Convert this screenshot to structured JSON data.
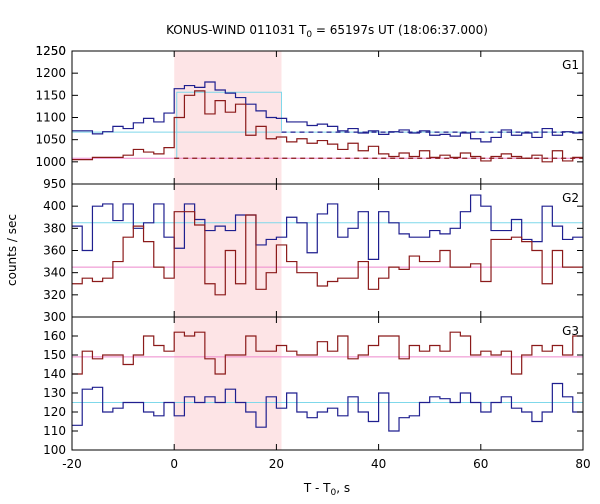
{
  "chart_data": {
    "type": "line",
    "title_main": "KONUS-WIND 011031 T",
    "title_sub": "0",
    "title_rest": " = 65197s UT (18:06:37.000)",
    "xlabel_main": "T - T",
    "xlabel_sub": "0",
    "xlabel_rest": ", s",
    "ylabel": "counts / sec",
    "xlim": [
      -20,
      80
    ],
    "x_ticks": [
      "-20",
      "0",
      "20",
      "40",
      "60",
      "80"
    ],
    "x_tick_values": [
      -20,
      0,
      20,
      40,
      60,
      80
    ],
    "shaded_interval": [
      0,
      21
    ],
    "shade_color": "#fde4e6",
    "bin_edges": [
      -20,
      -18,
      -16,
      -14,
      -12,
      -10,
      -8,
      -6,
      -4,
      -2,
      0,
      2,
      4,
      6,
      8,
      10,
      12,
      14,
      16,
      18,
      20,
      22,
      24,
      26,
      28,
      30,
      32,
      34,
      36,
      38,
      40,
      42,
      44,
      46,
      48,
      50,
      52,
      54,
      56,
      58,
      60,
      62,
      64,
      66,
      68,
      70,
      72,
      74,
      76,
      78,
      80
    ],
    "panels": [
      {
        "name": "G1",
        "ylim": [
          950,
          1250
        ],
        "y_ticks": [
          "950",
          "1000",
          "1050",
          "1100",
          "1150",
          "1200",
          "1250"
        ],
        "y_tick_values": [
          950,
          1000,
          1050,
          1100,
          1150,
          1200,
          1250
        ],
        "series": [
          {
            "color": "#1f1f8f",
            "values": [
              1070,
              1070,
              1063,
              1068,
              1080,
              1075,
              1088,
              1098,
              1090,
              1110,
              1165,
              1172,
              1168,
              1180,
              1162,
              1155,
              1145,
              1130,
              1115,
              1100,
              1098,
              1090,
              1090,
              1082,
              1085,
              1080,
              1070,
              1075,
              1065,
              1070,
              1062,
              1068,
              1072,
              1065,
              1070,
              1060,
              1062,
              1058,
              1065,
              1052,
              1045,
              1055,
              1072,
              1060,
              1065,
              1055,
              1075,
              1060,
              1068,
              1065
            ]
          },
          {
            "color": "#8b1a1a",
            "values": [
              1005,
              1005,
              1010,
              1010,
              1010,
              1015,
              1028,
              1022,
              1018,
              1032,
              1100,
              1150,
              1160,
              1108,
              1138,
              1112,
              1130,
              1060,
              1080,
              1052,
              1056,
              1045,
              1052,
              1042,
              1048,
              1040,
              1028,
              1042,
              1025,
              1035,
              1018,
              1012,
              1020,
              1012,
              1025,
              1010,
              1015,
              1010,
              1020,
              1012,
              1002,
              1012,
              1018,
              1012,
              1008,
              1015,
              1000,
              1025,
              1002,
              1010
            ]
          }
        ],
        "backgrounds": [
          {
            "color": "#7fd8ea",
            "value": 1067
          },
          {
            "color": "#ee88cc",
            "value": 1008
          }
        ],
        "dashed_levels": [
          {
            "color": "#1f1f8f",
            "value": 1067,
            "from": 21,
            "to": 80
          },
          {
            "color": "#8b1a1a",
            "value": 1008,
            "from": 0,
            "to": 80
          }
        ],
        "fit_box": {
          "color": "#7fd8ea",
          "value": 1157,
          "from": 0.5,
          "to": 21
        }
      },
      {
        "name": "G2",
        "ylim": [
          300,
          420
        ],
        "y_ticks": [
          "300",
          "320",
          "340",
          "360",
          "380",
          "400"
        ],
        "y_tick_values": [
          300,
          320,
          340,
          360,
          380,
          400
        ],
        "series": [
          {
            "color": "#1f1f8f",
            "values": [
              382,
              360,
              400,
              402,
              387,
              402,
              380,
              385,
              402,
              372,
              362,
              402,
              388,
              378,
              382,
              378,
              392,
              392,
              365,
              370,
              372,
              390,
              385,
              358,
              393,
              402,
              372,
              380,
              395,
              352,
              395,
              385,
              375,
              372,
              372,
              378,
              375,
              380,
              395,
              410,
              400,
              378,
              378,
              388,
              370,
              368,
              400,
              382,
              370,
              372
            ]
          },
          {
            "color": "#8b1a1a",
            "values": [
              330,
              335,
              332,
              335,
              350,
              372,
              382,
              368,
              345,
              335,
              395,
              395,
              383,
              330,
              320,
              360,
              330,
              392,
              325,
              340,
              365,
              350,
              340,
              340,
              328,
              332,
              335,
              335,
              350,
              325,
              335,
              345,
              343,
              355,
              350,
              350,
              360,
              345,
              345,
              348,
              332,
              370,
              370,
              372,
              368,
              360,
              330,
              360,
              345,
              345
            ]
          }
        ],
        "backgrounds": [
          {
            "color": "#7fd8ea",
            "value": 385
          },
          {
            "color": "#ee88cc",
            "value": 345
          }
        ]
      },
      {
        "name": "G3",
        "ylim": [
          100,
          170
        ],
        "y_ticks": [
          "100",
          "110",
          "120",
          "130",
          "140",
          "150",
          "160"
        ],
        "y_tick_values": [
          100,
          110,
          120,
          130,
          140,
          150,
          160
        ],
        "series": [
          {
            "color": "#8b1a1a",
            "values": [
              140,
              152,
              148,
              150,
              150,
              145,
              150,
              160,
              155,
              152,
              162,
              160,
              162,
              148,
              140,
              150,
              150,
              160,
              152,
              152,
              155,
              152,
              150,
              150,
              157,
              152,
              160,
              148,
              150,
              155,
              160,
              160,
              148,
              155,
              152,
              155,
              152,
              162,
              160,
              150,
              152,
              150,
              152,
              140,
              150,
              155,
              152,
              155,
              150,
              160
            ]
          },
          {
            "color": "#1f1f8f",
            "values": [
              113,
              132,
              133,
              120,
              122,
              125,
              125,
              120,
              118,
              125,
              118,
              128,
              125,
              128,
              125,
              132,
              125,
              120,
              112,
              128,
              122,
              130,
              120,
              117,
              120,
              122,
              118,
              128,
              120,
              115,
              130,
              110,
              117,
              118,
              125,
              128,
              127,
              125,
              130,
              125,
              120,
              125,
              128,
              122,
              120,
              115,
              120,
              135,
              128,
              120
            ]
          }
        ],
        "backgrounds": [
          {
            "color": "#ee88cc",
            "value": 149
          },
          {
            "color": "#7fd8ea",
            "value": 125
          }
        ]
      }
    ]
  }
}
